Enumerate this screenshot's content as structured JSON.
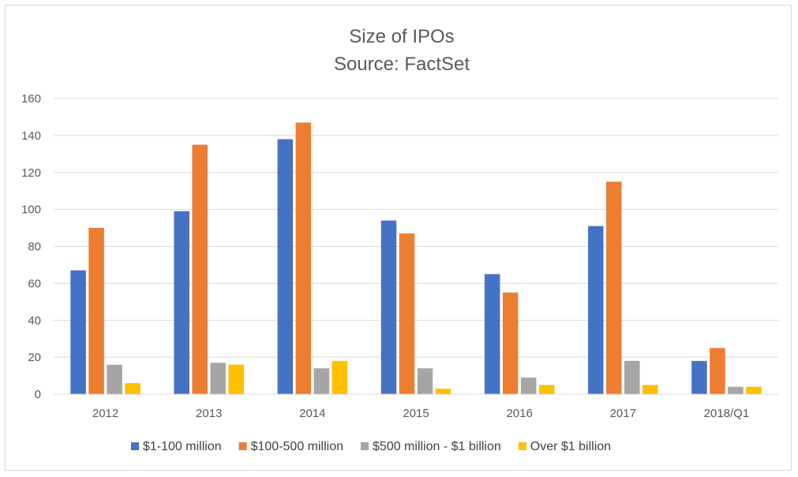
{
  "chart_data": {
    "type": "bar",
    "title": "Size of IPOs",
    "subtitle": "Source: FactSet",
    "categories": [
      "2012",
      "2013",
      "2014",
      "2015",
      "2016",
      "2017",
      "2018/Q1"
    ],
    "ylim": [
      0,
      160
    ],
    "yticks": [
      0,
      20,
      40,
      60,
      80,
      100,
      120,
      140,
      160
    ],
    "ytick_labels": [
      "0",
      "20",
      "40",
      "60",
      "80",
      "100",
      "120",
      "140",
      "160"
    ],
    "grid": true,
    "legend_position": "bottom",
    "series": [
      {
        "name": "$1-100 million",
        "color": "#4472C4",
        "values": [
          67,
          99,
          138,
          94,
          65,
          91,
          18
        ]
      },
      {
        "name": "$100-500 million",
        "color": "#ED7D31",
        "values": [
          90,
          135,
          147,
          87,
          55,
          115,
          25
        ]
      },
      {
        "name": "$500 million - $1 billion",
        "color": "#A5A5A5",
        "values": [
          16,
          17,
          14,
          14,
          9,
          18,
          4
        ]
      },
      {
        "name": "Over $1 billion",
        "color": "#FFC000",
        "values": [
          6,
          16,
          18,
          3,
          5,
          5,
          4
        ]
      }
    ]
  }
}
